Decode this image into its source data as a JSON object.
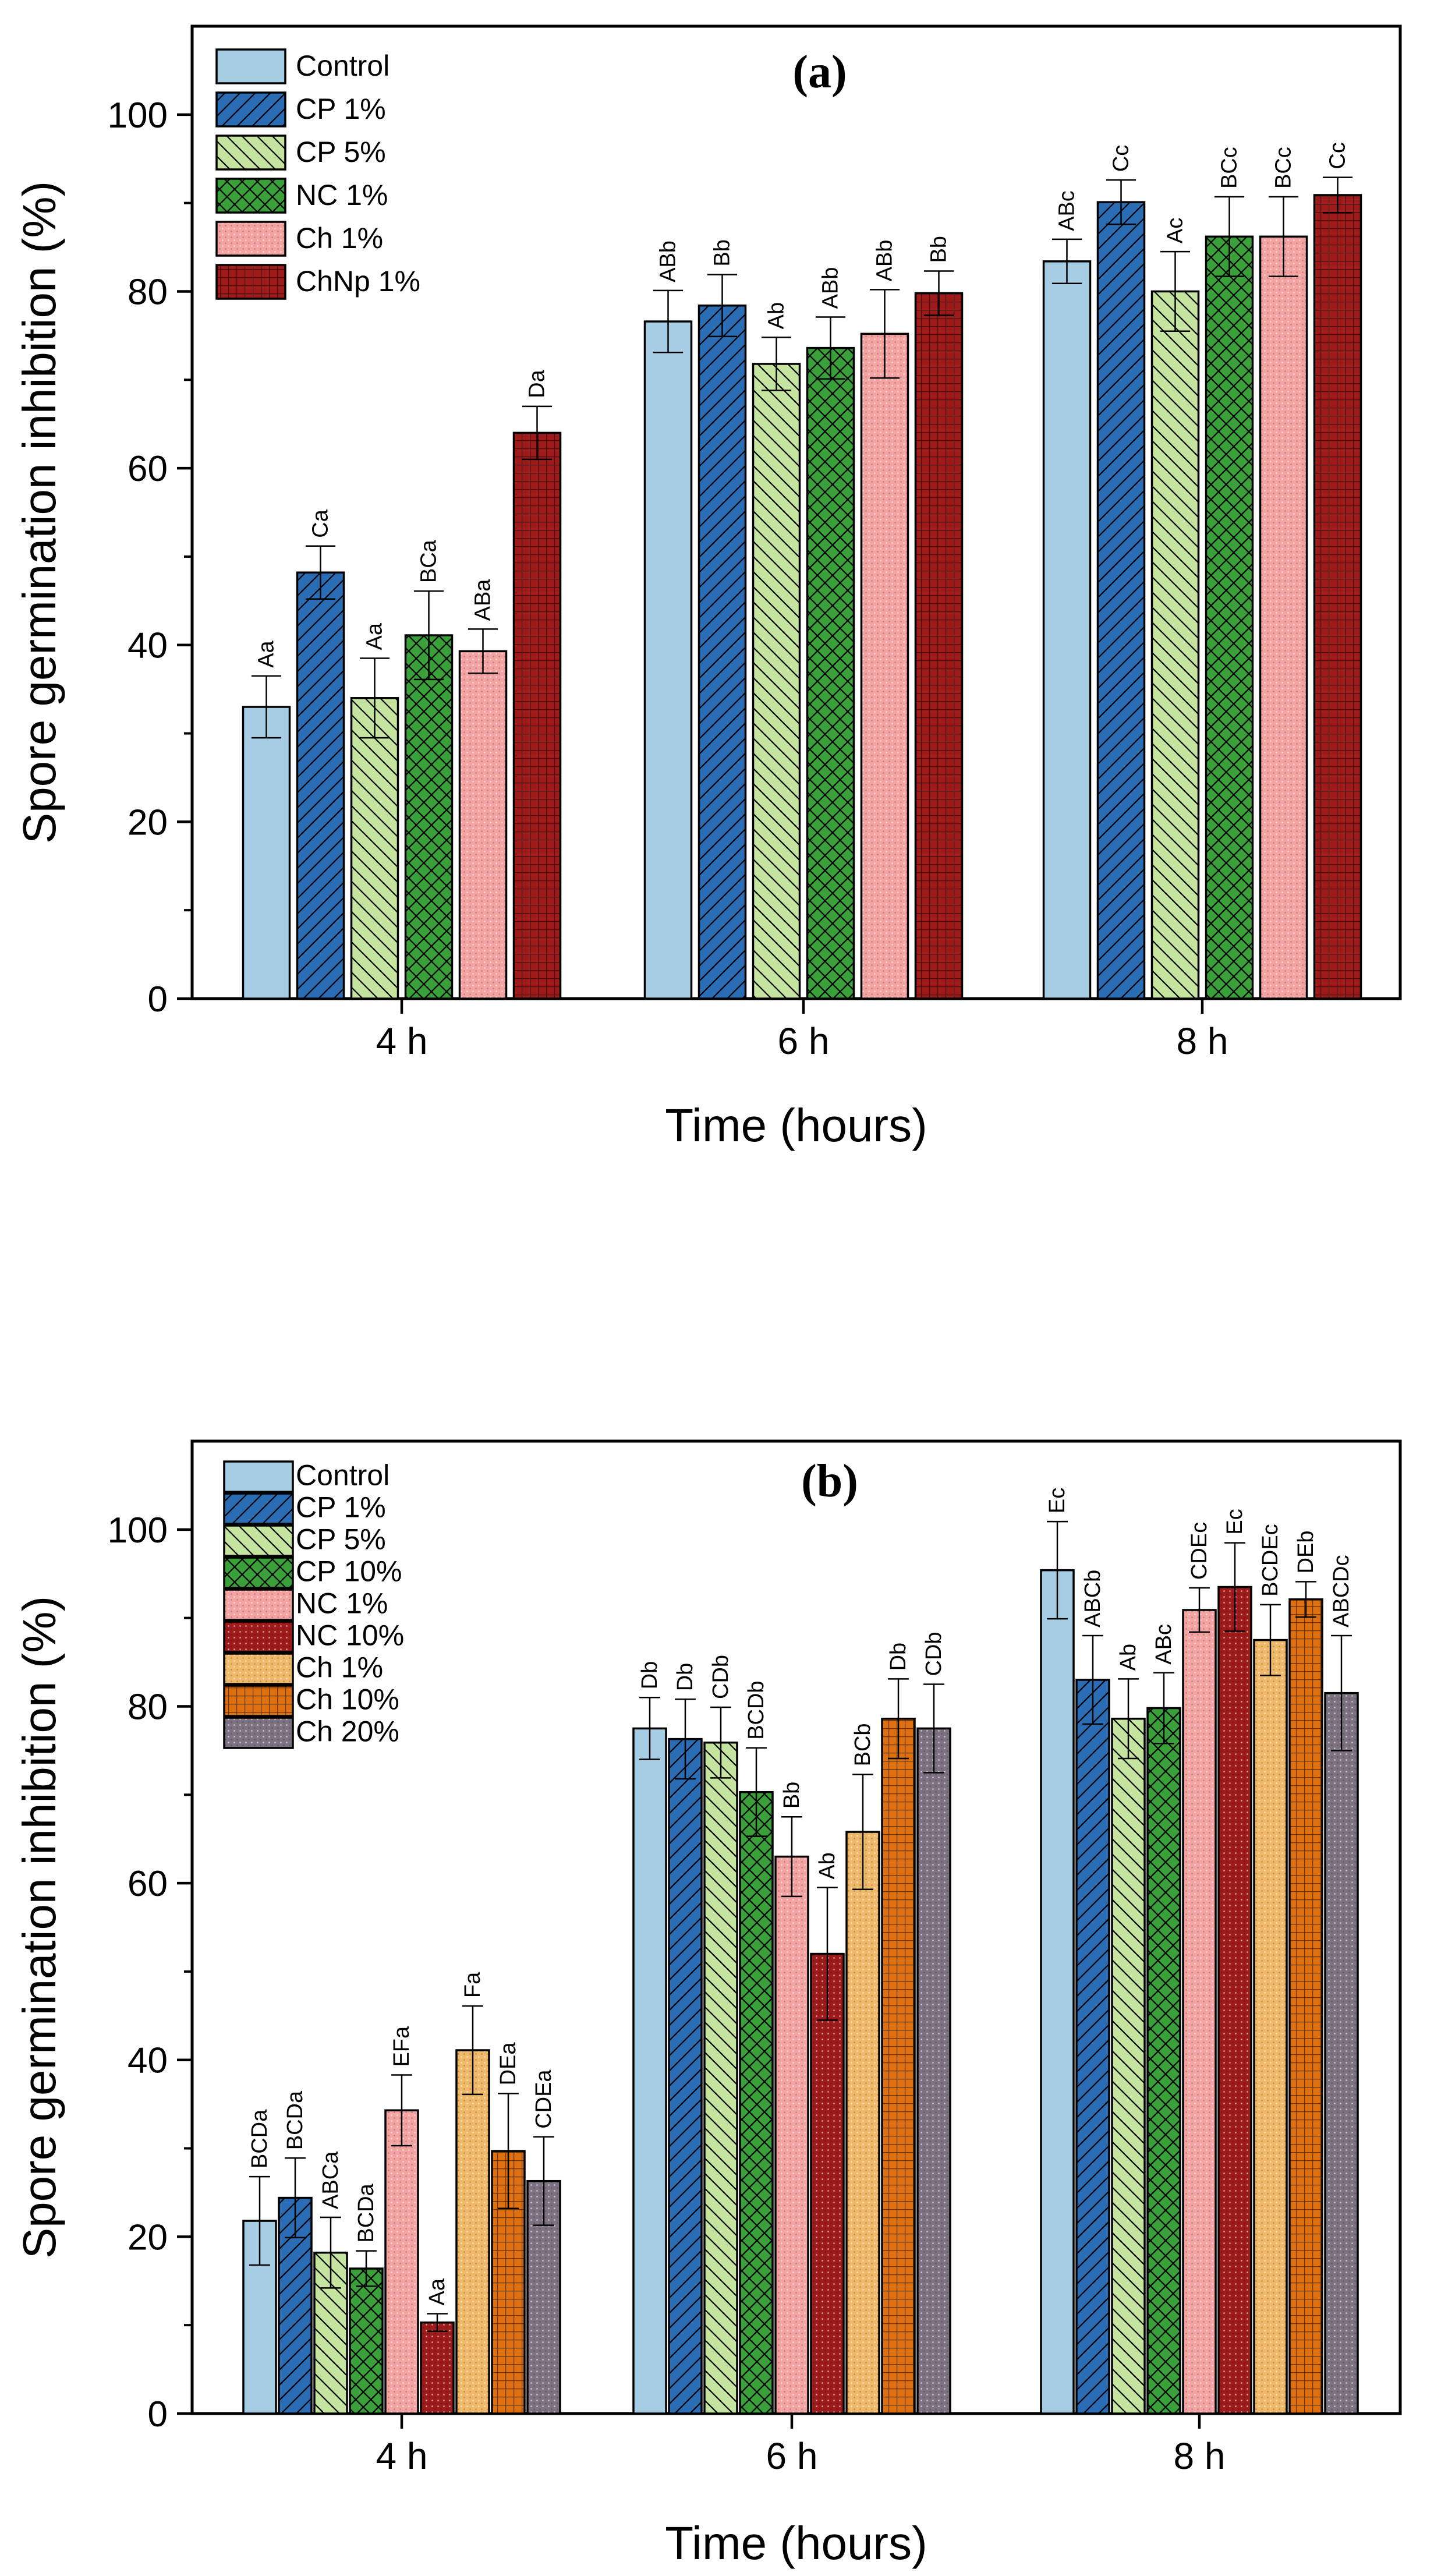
{
  "figure": {
    "description_free": true
  },
  "chart_data": [
    {
      "type": "bar",
      "panel": "a",
      "title": "(a)",
      "xlabel": "Time (hours)",
      "ylabel": "Spore germination inhibition (%)",
      "ylim": [
        0,
        110
      ],
      "yticks": [
        0,
        20,
        40,
        60,
        80,
        100
      ],
      "categories": [
        "4 h",
        "6 h",
        "8 h"
      ],
      "legend_position": "top-left",
      "series": [
        {
          "name": "Control",
          "color": "#a6cde3",
          "hatch": "none",
          "values": [
            33,
            76.6,
            83.4
          ],
          "errors": [
            3.5,
            3.5,
            2.5
          ],
          "labels": [
            "Aa",
            "ABb",
            "ABc"
          ]
        },
        {
          "name": "CP 1%",
          "color": "#2a6db5",
          "hatch": "diag-forward",
          "values": [
            48.2,
            78.4,
            90.1
          ],
          "errors": [
            3.0,
            3.5,
            2.5
          ],
          "labels": [
            "Ca",
            "Bb",
            "Cc"
          ]
        },
        {
          "name": "CP 5%",
          "color": "#c5e4a0",
          "hatch": "diag-back",
          "values": [
            34,
            71.8,
            80
          ],
          "errors": [
            4.5,
            3.0,
            4.5
          ],
          "labels": [
            "Aa",
            "Ab",
            "Ac"
          ]
        },
        {
          "name": "NC 1%",
          "color": "#3aa03a",
          "hatch": "cross",
          "values": [
            41.1,
            73.6,
            86.2
          ],
          "errors": [
            5.0,
            3.5,
            4.5
          ],
          "labels": [
            "BCa",
            "ABb",
            "BCc"
          ]
        },
        {
          "name": "Ch 1%",
          "color": "#f4a3a3",
          "hatch": "dots",
          "values": [
            39.3,
            75.2,
            86.2
          ],
          "errors": [
            2.5,
            5.0,
            4.5
          ],
          "labels": [
            "ABa",
            "ABb",
            "BCc"
          ]
        },
        {
          "name": "ChNp 1%",
          "color": "#9e1b1b",
          "hatch": "grid",
          "values": [
            64,
            79.8,
            90.9
          ],
          "errors": [
            3.0,
            2.5,
            2.0
          ],
          "labels": [
            "Da",
            "Bb",
            "Cc"
          ]
        }
      ]
    },
    {
      "type": "bar",
      "panel": "b",
      "title": "(b)",
      "xlabel": "Time (hours)",
      "ylabel": "Spore germination inhibition (%)",
      "ylim": [
        0,
        110
      ],
      "yticks": [
        0,
        20,
        40,
        60,
        80,
        100
      ],
      "categories": [
        "4 h",
        "6 h",
        "8 h"
      ],
      "legend_position": "top-left",
      "series": [
        {
          "name": "Control",
          "color": "#a6cde3",
          "hatch": "none",
          "values": [
            21.8,
            77.5,
            95.4
          ],
          "errors": [
            5.0,
            3.5,
            5.5
          ],
          "labels": [
            "BCDa",
            "Db",
            "Ec"
          ]
        },
        {
          "name": "CP 1%",
          "color": "#2a6db5",
          "hatch": "diag-forward",
          "values": [
            24.4,
            76.3,
            83
          ],
          "errors": [
            4.5,
            4.5,
            5.0
          ],
          "labels": [
            "BCDa",
            "Db",
            "ABCb"
          ]
        },
        {
          "name": "CP 5%",
          "color": "#c5e4a0",
          "hatch": "diag-back",
          "values": [
            18.2,
            75.9,
            78.6
          ],
          "errors": [
            4.0,
            4.0,
            4.5
          ],
          "labels": [
            "ABCa",
            "CDb",
            "Ab"
          ]
        },
        {
          "name": "CP 10%",
          "color": "#3aa03a",
          "hatch": "cross",
          "values": [
            16.4,
            70.3,
            79.8
          ],
          "errors": [
            2.0,
            5.0,
            4.0
          ],
          "labels": [
            "BCDa",
            "BCDb",
            "ABc"
          ]
        },
        {
          "name": "NC 1%",
          "color": "#f4a3a3",
          "hatch": "dots",
          "values": [
            34.3,
            63,
            90.9
          ],
          "errors": [
            4.0,
            4.5,
            2.5
          ],
          "labels": [
            "EFa",
            "Bb",
            "CDEc"
          ]
        },
        {
          "name": "NC 10%",
          "color": "#9e1b1b",
          "hatch": "dots",
          "values": [
            10.3,
            52,
            93.5
          ],
          "errors": [
            1.0,
            7.5,
            5.0
          ],
          "labels": [
            "Aa",
            "Ab",
            "Ec"
          ]
        },
        {
          "name": "Ch 1%",
          "color": "#f0b96a",
          "hatch": "dots",
          "values": [
            41.1,
            65.8,
            87.5
          ],
          "errors": [
            5.0,
            6.5,
            4.0
          ],
          "labels": [
            "Fa",
            "BCb",
            "BCDEc"
          ]
        },
        {
          "name": "Ch 10%",
          "color": "#de7010",
          "hatch": "grid",
          "values": [
            29.7,
            78.6,
            92.1
          ],
          "errors": [
            6.5,
            4.5,
            2.0
          ],
          "labels": [
            "DEa",
            "Db",
            "DEb"
          ]
        },
        {
          "name": "Ch 20%",
          "color": "#7e7282",
          "hatch": "dots",
          "values": [
            26.3,
            77.5,
            81.5
          ],
          "errors": [
            5.0,
            5.0,
            6.5
          ],
          "labels": [
            "CDEa",
            "CDb",
            "ABCDc"
          ]
        }
      ]
    }
  ]
}
